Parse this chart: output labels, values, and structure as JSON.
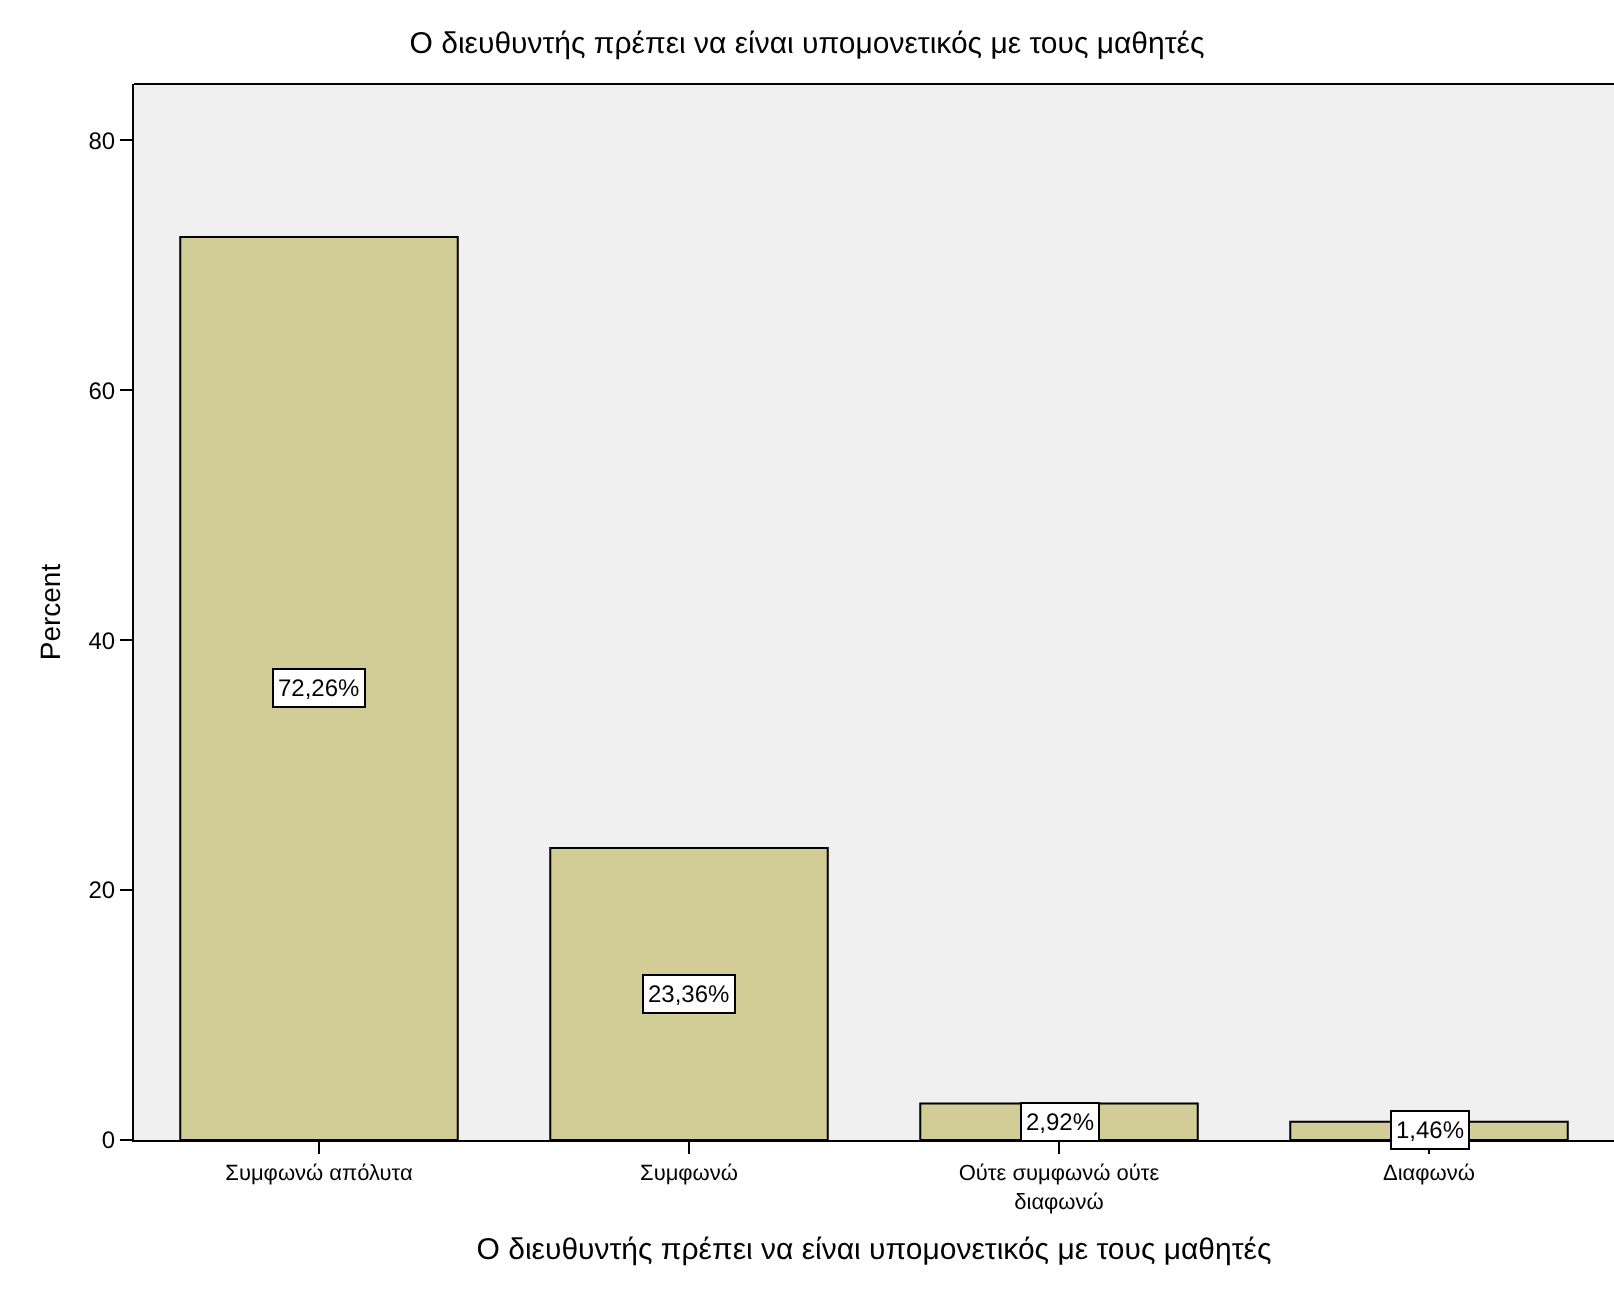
{
  "chart_data": {
    "type": "bar",
    "title": "Ο διευθυντής πρέπει να είναι υπομονετικός με τους μαθητές",
    "xlabel": "Ο διευθυντής πρέπει να είναι υπομονετικός με τους μαθητές",
    "ylabel": "Percent",
    "categories": [
      "Συμφωνώ απόλυτα",
      "Συμφωνώ",
      "Ούτε συμφωνώ ούτε διαφωνώ",
      "Διαφωνώ"
    ],
    "values": [
      72.26,
      23.36,
      2.92,
      1.46
    ],
    "value_labels": [
      "72,26%",
      "23,36%",
      "2,92%",
      "1,46%"
    ],
    "color": "#d2cc96",
    "ylim": [
      0,
      84.5
    ],
    "yticks": [
      0,
      20,
      40,
      60,
      80
    ],
    "grid": false,
    "legend": false
  }
}
